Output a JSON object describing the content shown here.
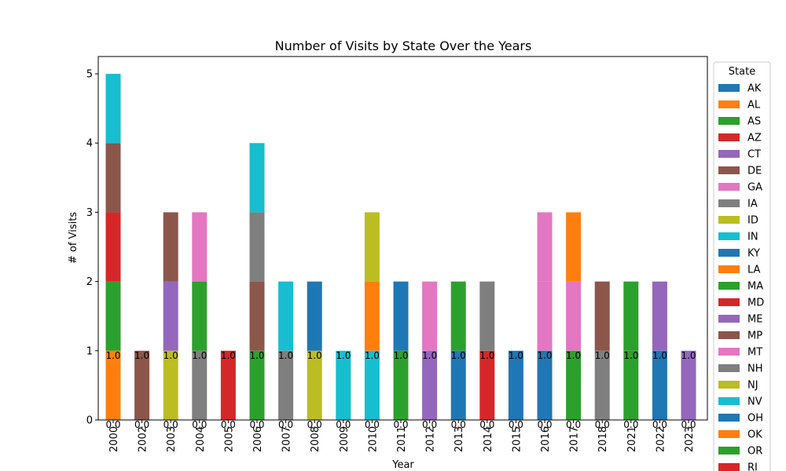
{
  "chart_data": {
    "type": "bar",
    "stacked": true,
    "title": "Number of Visits by State Over the Years",
    "xlabel": "Year",
    "ylabel": "# of Visits",
    "ylim": [
      0,
      5.25
    ],
    "yticks": [
      "0",
      "1",
      "2",
      "3",
      "4",
      "5"
    ],
    "categories": [
      "2000",
      "2002",
      "2003",
      "2004",
      "2005",
      "2006",
      "2007",
      "2008",
      "2009",
      "2010",
      "2011",
      "2012",
      "2013",
      "2014",
      "2015",
      "2016",
      "2017",
      "2018",
      "2021",
      "2022",
      "2023"
    ],
    "legend": {
      "title": "State",
      "placement": "right, outside plot"
    },
    "series": [
      {
        "name": "AK",
        "color": "#1f77b4",
        "values": [
          0,
          0,
          0,
          0,
          0,
          0,
          0,
          0,
          0,
          0,
          0,
          0,
          0,
          0,
          0,
          0,
          0,
          0,
          0,
          0,
          0
        ]
      },
      {
        "name": "AL",
        "color": "#ff7f0e",
        "values": [
          1,
          0,
          0,
          0,
          0,
          0,
          0,
          0,
          0,
          0,
          0,
          0,
          0,
          0,
          0,
          0,
          0,
          0,
          0,
          0,
          0
        ]
      },
      {
        "name": "AS",
        "color": "#2ca02c",
        "values": [
          1,
          0,
          0,
          0,
          0,
          0,
          0,
          0,
          0,
          0,
          0,
          0,
          0,
          0,
          0,
          0,
          0,
          0,
          0,
          0,
          0
        ]
      },
      {
        "name": "AZ",
        "color": "#d62728",
        "values": [
          1,
          0,
          0,
          0,
          0,
          0,
          0,
          0,
          0,
          0,
          0,
          0,
          0,
          0,
          0,
          0,
          0,
          0,
          0,
          0,
          0
        ]
      },
      {
        "name": "CT",
        "color": "#9467bd",
        "values": [
          0,
          0,
          0,
          0,
          0,
          0,
          0,
          0,
          0,
          0,
          0,
          0,
          0,
          0,
          0,
          0,
          0,
          0,
          0,
          0,
          0
        ]
      },
      {
        "name": "DE",
        "color": "#8c564b",
        "values": [
          1,
          1,
          0,
          0,
          0,
          0,
          0,
          0,
          0,
          0,
          0,
          0,
          0,
          0,
          0,
          0,
          0,
          0,
          0,
          0,
          0
        ]
      },
      {
        "name": "GA",
        "color": "#e377c2",
        "values": [
          0,
          0,
          0,
          0,
          0,
          0,
          0,
          0,
          0,
          0,
          0,
          0,
          0,
          0,
          0,
          0,
          0,
          0,
          0,
          0,
          0
        ]
      },
      {
        "name": "IA",
        "color": "#7f7f7f",
        "values": [
          0,
          0,
          0,
          1,
          0,
          0,
          0,
          0,
          0,
          0,
          0,
          0,
          0,
          0,
          0,
          0,
          0,
          0,
          0,
          0,
          0
        ]
      },
      {
        "name": "ID",
        "color": "#bcbd22",
        "values": [
          0,
          0,
          1,
          0,
          0,
          0,
          0,
          0,
          0,
          0,
          0,
          0,
          0,
          0,
          0,
          0,
          0,
          0,
          0,
          0,
          0
        ]
      },
      {
        "name": "IN",
        "color": "#17becf",
        "values": [
          1,
          0,
          0,
          0,
          0,
          0,
          0,
          0,
          0,
          0,
          0,
          0,
          0,
          0,
          0,
          0,
          0,
          0,
          0,
          0,
          0
        ]
      },
      {
        "name": "KY",
        "color": "#1f77b4",
        "values": [
          0,
          0,
          0,
          0,
          0,
          0,
          0,
          0,
          0,
          0,
          0,
          0,
          0,
          0,
          0,
          0,
          0,
          0,
          0,
          0,
          0
        ]
      },
      {
        "name": "LA",
        "color": "#ff7f0e",
        "values": [
          0,
          0,
          0,
          0,
          0,
          0,
          0,
          0,
          0,
          0,
          0,
          0,
          0,
          0,
          0,
          0,
          0,
          0,
          0,
          0,
          0
        ]
      },
      {
        "name": "MA",
        "color": "#2ca02c",
        "values": [
          0,
          0,
          0,
          1,
          0,
          1,
          0,
          0,
          0,
          0,
          0,
          0,
          0,
          0,
          0,
          0,
          0,
          0,
          0,
          0,
          0
        ]
      },
      {
        "name": "MD",
        "color": "#d62728",
        "values": [
          0,
          0,
          0,
          0,
          1,
          0,
          0,
          0,
          0,
          0,
          0,
          0,
          0,
          0,
          0,
          0,
          0,
          0,
          0,
          0,
          0
        ]
      },
      {
        "name": "ME",
        "color": "#9467bd",
        "values": [
          0,
          0,
          1,
          0,
          0,
          0,
          0,
          0,
          0,
          0,
          0,
          0,
          0,
          0,
          0,
          0,
          0,
          0,
          0,
          0,
          0
        ]
      },
      {
        "name": "MP",
        "color": "#8c564b",
        "values": [
          0,
          0,
          1,
          0,
          0,
          1,
          0,
          0,
          0,
          0,
          0,
          0,
          0,
          0,
          0,
          0,
          0,
          0,
          0,
          0,
          0
        ]
      },
      {
        "name": "MT",
        "color": "#e377c2",
        "values": [
          0,
          0,
          0,
          1,
          0,
          0,
          0,
          0,
          0,
          0,
          0,
          0,
          0,
          0,
          0,
          0,
          0,
          0,
          0,
          0,
          0
        ]
      },
      {
        "name": "NH",
        "color": "#7f7f7f",
        "values": [
          0,
          0,
          0,
          0,
          0,
          1,
          1,
          0,
          0,
          0,
          0,
          0,
          0,
          0,
          0,
          0,
          0,
          0,
          0,
          0,
          0
        ]
      },
      {
        "name": "NJ",
        "color": "#bcbd22",
        "values": [
          0,
          0,
          0,
          0,
          0,
          0,
          0,
          1,
          0,
          0,
          0,
          0,
          0,
          0,
          0,
          0,
          0,
          0,
          0,
          0,
          0
        ]
      },
      {
        "name": "NV",
        "color": "#17becf",
        "values": [
          0,
          0,
          0,
          0,
          0,
          1,
          1,
          0,
          1,
          1,
          0,
          0,
          0,
          0,
          0,
          0,
          0,
          0,
          0,
          0,
          0
        ]
      },
      {
        "name": "OH",
        "color": "#1f77b4",
        "values": [
          0,
          0,
          0,
          0,
          0,
          0,
          0,
          1,
          0,
          0,
          0,
          0,
          0,
          0,
          0,
          0,
          0,
          0,
          0,
          0,
          0
        ]
      },
      {
        "name": "OK",
        "color": "#ff7f0e",
        "values": [
          0,
          0,
          0,
          0,
          0,
          0,
          0,
          0,
          0,
          1,
          0,
          0,
          0,
          0,
          0,
          0,
          0,
          0,
          0,
          0,
          0
        ]
      },
      {
        "name": "OR",
        "color": "#2ca02c",
        "values": [
          0,
          0,
          0,
          0,
          0,
          0,
          0,
          0,
          0,
          0,
          1,
          0,
          0,
          0,
          0,
          0,
          0,
          0,
          0,
          0,
          0
        ]
      },
      {
        "name": "RI",
        "color": "#d62728",
        "values": [
          0,
          0,
          0,
          0,
          0,
          0,
          0,
          0,
          0,
          0,
          0,
          0,
          0,
          0,
          0,
          0,
          0,
          0,
          0,
          0,
          0
        ]
      },
      {
        "name": "",
        "color": "#9467bd",
        "values": [
          0,
          0,
          0,
          0,
          0,
          0,
          0,
          0,
          0,
          0,
          0,
          1,
          0,
          0,
          0,
          0,
          0,
          0,
          0,
          0,
          1
        ]
      },
      {
        "name": "",
        "color": "#1f77b4",
        "values": [
          0,
          0,
          0,
          0,
          0,
          0,
          0,
          0,
          0,
          0,
          1,
          0,
          1,
          0,
          1,
          1,
          0,
          0,
          0,
          1,
          0
        ]
      },
      {
        "name": "",
        "color": "#2ca02c",
        "values": [
          0,
          0,
          0,
          0,
          0,
          0,
          0,
          0,
          0,
          0,
          0,
          0,
          1,
          0,
          0,
          0,
          1,
          0,
          1,
          0,
          0
        ]
      },
      {
        "name": "",
        "color": "#d62728",
        "values": [
          0,
          0,
          0,
          0,
          0,
          0,
          0,
          0,
          0,
          0,
          0,
          0,
          0,
          1,
          0,
          0,
          0,
          0,
          0,
          0,
          0
        ]
      },
      {
        "name": "",
        "color": "#7f7f7f",
        "values": [
          0,
          0,
          0,
          0,
          0,
          0,
          0,
          0,
          0,
          0,
          0,
          0,
          0,
          1,
          0,
          0,
          0,
          1,
          0,
          0,
          0
        ]
      },
      {
        "name": "",
        "color": "#e377c2",
        "values": [
          0,
          0,
          0,
          0,
          0,
          0,
          0,
          0,
          0,
          0,
          0,
          1,
          0,
          0,
          0,
          1,
          1,
          0,
          0,
          0,
          0
        ]
      },
      {
        "name": "",
        "color": "#bcbd22",
        "values": [
          0,
          0,
          0,
          0,
          0,
          0,
          0,
          0,
          0,
          1,
          0,
          0,
          0,
          0,
          0,
          0,
          0,
          0,
          0,
          0,
          0
        ]
      },
      {
        "name": "",
        "color": "#8c564b",
        "values": [
          0,
          0,
          0,
          0,
          0,
          0,
          0,
          0,
          0,
          0,
          0,
          0,
          0,
          0,
          0,
          0,
          0,
          1,
          0,
          0,
          0
        ]
      },
      {
        "name": "",
        "color": "#ff7f0e",
        "values": [
          0,
          0,
          0,
          0,
          0,
          0,
          0,
          0,
          0,
          0,
          0,
          0,
          0,
          0,
          0,
          0,
          1,
          0,
          0,
          0,
          0
        ]
      },
      {
        "name": "",
        "color": "#2ca02c",
        "values": [
          0,
          0,
          0,
          0,
          0,
          0,
          0,
          0,
          0,
          0,
          0,
          0,
          0,
          0,
          0,
          0,
          0,
          0,
          1,
          0,
          0
        ]
      },
      {
        "name": "",
        "color": "#9467bd",
        "values": [
          0,
          0,
          0,
          0,
          0,
          0,
          0,
          0,
          0,
          0,
          0,
          0,
          0,
          0,
          0,
          0,
          0,
          0,
          0,
          1,
          0
        ]
      },
      {
        "name": "",
        "color": "#e377c2",
        "values": [
          0,
          0,
          0,
          0,
          0,
          0,
          0,
          0,
          0,
          0,
          0,
          0,
          0,
          0,
          0,
          1,
          0,
          0,
          0,
          0,
          0
        ]
      }
    ],
    "bar_labels": {
      "bottom": "0.0",
      "first_segment": "1.0"
    }
  }
}
